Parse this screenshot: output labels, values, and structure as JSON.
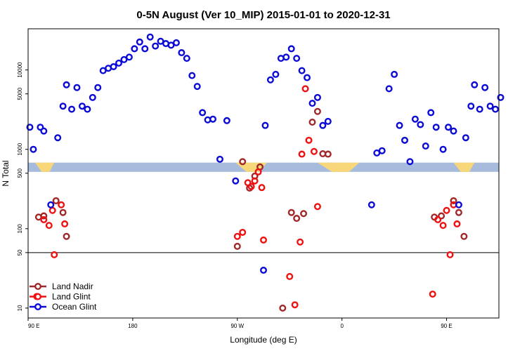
{
  "chart_data": {
    "type": "scatter",
    "title": "0-5N August (Ver 10_MIP)   2015-01-01 to 2020-12-31",
    "xlabel": "Longitude (deg E)",
    "ylabel": "N Total",
    "xlim": [
      -90,
      180
    ],
    "ylim": [
      7.5,
      33000
    ],
    "yscale": "log",
    "x_ticks": [
      {
        "value": -90,
        "label": "90 E"
      },
      {
        "value": -30,
        "label": "180"
      },
      {
        "value": 30,
        "label": "90 W"
      },
      {
        "value": 90,
        "label": "0"
      },
      {
        "value": 150,
        "label": "90 E"
      },
      {
        "value": 210,
        "label": "180"
      }
    ],
    "y_ticks": [
      10,
      50,
      100,
      500,
      1000,
      5000,
      10000
    ],
    "reference_line": 50,
    "grid": false,
    "legend_position": "bottom-left",
    "band": {
      "y_low": 520,
      "y_high": 680,
      "color": "#a7bcdc",
      "land_color": "#f8d77b"
    },
    "series": [
      {
        "name": "Land Nadir",
        "color": "#a02828",
        "points": [
          [
            -84,
            140
          ],
          [
            -81,
            145
          ],
          [
            -74,
            225
          ],
          [
            -70,
            160
          ],
          [
            -68,
            80
          ],
          [
            30,
            60
          ],
          [
            33,
            700
          ],
          [
            37,
            325
          ],
          [
            40,
            460
          ],
          [
            43,
            600
          ],
          [
            56,
            10
          ],
          [
            61,
            160
          ],
          [
            64,
            135
          ],
          [
            68,
            155
          ],
          [
            73,
            2200
          ],
          [
            76,
            3000
          ],
          [
            79,
            880
          ],
          [
            82,
            870
          ],
          [
            143,
            140
          ],
          [
            147,
            145
          ],
          [
            154,
            225
          ],
          [
            157,
            160
          ],
          [
            160,
            80
          ]
        ]
      },
      {
        "name": "Land Glint",
        "color": "#ee1111",
        "points": [
          [
            -85,
            14
          ],
          [
            -81,
            130
          ],
          [
            -78,
            110
          ],
          [
            -76,
            170
          ],
          [
            -75,
            47
          ],
          [
            -71,
            200
          ],
          [
            -69,
            115
          ],
          [
            30,
            80
          ],
          [
            33,
            90
          ],
          [
            36,
            380
          ],
          [
            38,
            340
          ],
          [
            40,
            400
          ],
          [
            42,
            520
          ],
          [
            44,
            330
          ],
          [
            45,
            72
          ],
          [
            60,
            25
          ],
          [
            63,
            11
          ],
          [
            66,
            68
          ],
          [
            67,
            870
          ],
          [
            69,
            5800
          ],
          [
            71,
            1300
          ],
          [
            74,
            940
          ],
          [
            76,
            190
          ],
          [
            142,
            15
          ],
          [
            145,
            130
          ],
          [
            148,
            110
          ],
          [
            150,
            170
          ],
          [
            152,
            47
          ],
          [
            154,
            200
          ],
          [
            156,
            115
          ]
        ]
      },
      {
        "name": "Ocean Glint",
        "color": "#0b0bd6",
        "points": [
          [
            -89,
            1900
          ],
          [
            -87,
            1000
          ],
          [
            -83,
            1900
          ],
          [
            -81,
            1700
          ],
          [
            -77,
            200
          ],
          [
            -73,
            1400
          ],
          [
            -70,
            3500
          ],
          [
            -68,
            6500
          ],
          [
            -65,
            3200
          ],
          [
            -62,
            6000
          ],
          [
            -59,
            3500
          ],
          [
            -56,
            3200
          ],
          [
            -53,
            4500
          ],
          [
            -50,
            6000
          ],
          [
            -47,
            9800
          ],
          [
            -44,
            10500
          ],
          [
            -41,
            11000
          ],
          [
            -38,
            12200
          ],
          [
            -35,
            13500
          ],
          [
            -32,
            14500
          ],
          [
            -29,
            18500
          ],
          [
            -26,
            22500
          ],
          [
            -23,
            18500
          ],
          [
            -20,
            26000
          ],
          [
            -17,
            20000
          ],
          [
            -14,
            23000
          ],
          [
            -11,
            21500
          ],
          [
            -8,
            20500
          ],
          [
            -5,
            22000
          ],
          [
            -2,
            16500
          ],
          [
            1,
            14000
          ],
          [
            4,
            8500
          ],
          [
            7,
            6200
          ],
          [
            10,
            2900
          ],
          [
            13,
            2350
          ],
          [
            16,
            2400
          ],
          [
            20,
            750
          ],
          [
            24,
            2300
          ],
          [
            29,
            400
          ],
          [
            45,
            30
          ],
          [
            46,
            2000
          ],
          [
            49,
            7500
          ],
          [
            52,
            8800
          ],
          [
            55,
            14000
          ],
          [
            58,
            14500
          ],
          [
            61,
            18500
          ],
          [
            64,
            14000
          ],
          [
            67,
            9800
          ],
          [
            70,
            8000
          ],
          [
            73,
            3800
          ],
          [
            76,
            4500
          ],
          [
            79,
            2000
          ],
          [
            82,
            2250
          ],
          [
            107,
            200
          ],
          [
            110,
            900
          ],
          [
            113,
            960
          ],
          [
            117,
            5800
          ],
          [
            120,
            8800
          ],
          [
            123,
            2000
          ],
          [
            126,
            1300
          ],
          [
            129,
            700
          ],
          [
            132,
            2400
          ],
          [
            135,
            2050
          ],
          [
            138,
            1100
          ],
          [
            141,
            2900
          ],
          [
            144,
            1900
          ],
          [
            148,
            1000
          ],
          [
            151,
            1900
          ],
          [
            154,
            1700
          ],
          [
            157,
            200
          ],
          [
            161,
            1400
          ],
          [
            164,
            3500
          ],
          [
            166,
            6500
          ],
          [
            169,
            3200
          ],
          [
            172,
            6000
          ],
          [
            175,
            3500
          ],
          [
            178,
            3200
          ],
          [
            181,
            4500
          ],
          [
            184,
            6000
          ],
          [
            187,
            9800
          ],
          [
            190,
            10500
          ],
          [
            193,
            11000
          ],
          [
            196,
            12200
          ]
        ]
      }
    ]
  }
}
